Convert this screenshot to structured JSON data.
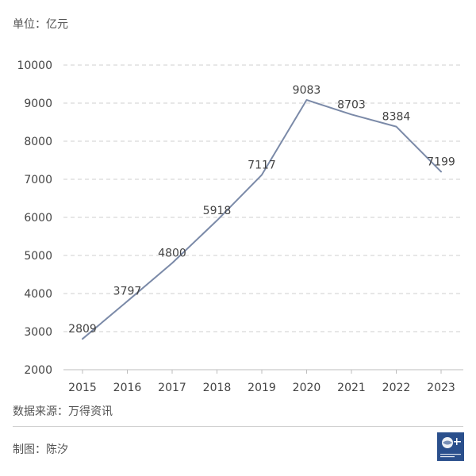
{
  "header": {
    "unit": "单位：亿元"
  },
  "chart_data": {
    "type": "line",
    "title": "",
    "xlabel": "",
    "ylabel": "",
    "unit": "亿元",
    "categories": [
      "2015",
      "2016",
      "2017",
      "2018",
      "2019",
      "2020",
      "2021",
      "2022",
      "2023"
    ],
    "series": [
      {
        "values": [
          2809,
          3797,
          4800,
          5918,
          7117,
          9083,
          8703,
          8384,
          7199
        ],
        "color": "#7b8aa8"
      }
    ],
    "ylim": [
      2000,
      10000
    ],
    "yticks": [
      2000,
      3000,
      4000,
      5000,
      6000,
      7000,
      8000,
      9000,
      10000
    ],
    "grid": true,
    "grid_style": "dashed",
    "data_labels": true,
    "legend": "none"
  },
  "footer": {
    "source": "数据来源：万得资讯",
    "maker": "制图：陈汐"
  },
  "logo": {
    "icon": "globe-logo-icon",
    "color": "#2a4f8c"
  }
}
